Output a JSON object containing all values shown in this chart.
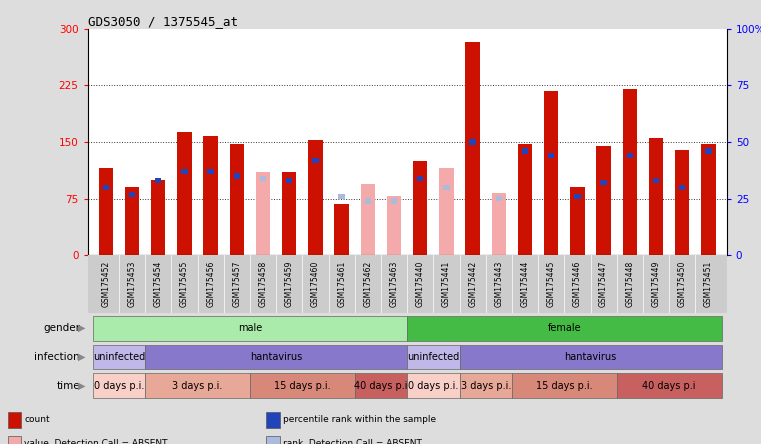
{
  "title": "GDS3050 / 1375545_at",
  "samples": [
    "GSM175452",
    "GSM175453",
    "GSM175454",
    "GSM175455",
    "GSM175456",
    "GSM175457",
    "GSM175458",
    "GSM175459",
    "GSM175460",
    "GSM175461",
    "GSM175462",
    "GSM175463",
    "GSM175440",
    "GSM175441",
    "GSM175442",
    "GSM175443",
    "GSM175444",
    "GSM175445",
    "GSM175446",
    "GSM175447",
    "GSM175448",
    "GSM175449",
    "GSM175450",
    "GSM175451"
  ],
  "red_values": [
    115,
    90,
    100,
    163,
    158,
    148,
    null,
    110,
    153,
    68,
    null,
    null,
    125,
    null,
    283,
    null,
    148,
    218,
    90,
    145,
    220,
    155,
    140,
    148
  ],
  "pink_values": [
    null,
    null,
    null,
    null,
    null,
    null,
    110,
    null,
    null,
    null,
    95,
    78,
    null,
    115,
    null,
    82,
    null,
    null,
    null,
    null,
    null,
    null,
    null,
    null
  ],
  "blue_values": [
    30,
    27,
    33,
    37,
    37,
    35,
    null,
    33,
    42,
    26,
    null,
    null,
    34,
    null,
    50,
    null,
    46,
    44,
    26,
    32,
    44,
    33,
    30,
    46
  ],
  "lightblue_values": [
    null,
    null,
    null,
    null,
    null,
    null,
    34,
    null,
    null,
    26,
    24,
    24,
    null,
    30,
    null,
    25,
    null,
    null,
    null,
    null,
    null,
    null,
    null,
    null
  ],
  "ylim_left": [
    0,
    300
  ],
  "ylim_right": [
    0,
    100
  ],
  "yticks_left": [
    0,
    75,
    150,
    225,
    300
  ],
  "yticks_right": [
    0,
    25,
    50,
    75,
    100
  ],
  "hlines": [
    75,
    150,
    225
  ],
  "gender_groups": [
    {
      "label": "male",
      "start": 0,
      "end": 11,
      "color": "#AAEAAA"
    },
    {
      "label": "female",
      "start": 12,
      "end": 23,
      "color": "#44BB44"
    }
  ],
  "infection_groups": [
    {
      "label": "uninfected",
      "start": 0,
      "end": 1,
      "color": "#C0B8E8"
    },
    {
      "label": "hantavirus",
      "start": 2,
      "end": 11,
      "color": "#8878CC"
    },
    {
      "label": "uninfected",
      "start": 12,
      "end": 13,
      "color": "#C0B8E8"
    },
    {
      "label": "hantavirus",
      "start": 14,
      "end": 23,
      "color": "#8878CC"
    }
  ],
  "time_groups": [
    {
      "label": "0 days p.i.",
      "start": 0,
      "end": 1,
      "color": "#F8D0C8"
    },
    {
      "label": "3 days p.i.",
      "start": 2,
      "end": 5,
      "color": "#E8A898"
    },
    {
      "label": "15 days p.i.",
      "start": 6,
      "end": 9,
      "color": "#D88878"
    },
    {
      "label": "40 days p.i",
      "start": 10,
      "end": 11,
      "color": "#C86060"
    },
    {
      "label": "0 days p.i.",
      "start": 12,
      "end": 13,
      "color": "#F8D0C8"
    },
    {
      "label": "3 days p.i.",
      "start": 14,
      "end": 15,
      "color": "#E8A898"
    },
    {
      "label": "15 days p.i.",
      "start": 16,
      "end": 19,
      "color": "#D88878"
    },
    {
      "label": "40 days p.i",
      "start": 20,
      "end": 23,
      "color": "#C86060"
    }
  ],
  "bar_width": 0.55,
  "bar_color_red": "#CC1100",
  "bar_color_pink": "#F4AAAA",
  "bar_color_blue": "#2244BB",
  "bar_color_lightblue": "#AABBDD",
  "bg_color": "#DDDDDD",
  "plot_bg": "#FFFFFF",
  "xtick_bg": "#CCCCCC",
  "legend_items": [
    {
      "color": "#CC1100",
      "label": "count"
    },
    {
      "color": "#2244BB",
      "label": "percentile rank within the sample"
    },
    {
      "color": "#F4AAAA",
      "label": "value, Detection Call = ABSENT"
    },
    {
      "color": "#AABBDD",
      "label": "rank, Detection Call = ABSENT"
    }
  ]
}
